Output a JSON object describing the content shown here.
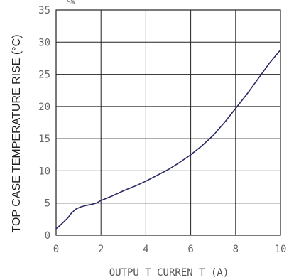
{
  "chart_data": {
    "type": "line",
    "title": "",
    "corner_text": "SW",
    "xlabel": "OUTPU T CURREN T (A)",
    "ylabel": "TOP CASE TEMPERATURE RISE (°C)",
    "xlim": [
      0,
      10
    ],
    "ylim": [
      0,
      35
    ],
    "x_ticks": [
      0,
      2,
      4,
      6,
      8,
      10
    ],
    "y_ticks": [
      0,
      5,
      10,
      15,
      20,
      25,
      30,
      35
    ],
    "grid": true,
    "series": [
      {
        "color": "#2a2a66",
        "x": [
          0,
          0.2,
          0.5,
          0.7,
          0.9,
          1.1,
          1.3,
          1.6,
          1.8,
          2.0,
          2.5,
          3.0,
          3.5,
          4.0,
          4.5,
          5.0,
          5.5,
          6.0,
          6.5,
          7.0,
          7.5,
          8.0,
          8.5,
          9.0,
          9.5,
          10.0
        ],
        "y": [
          1.0,
          1.6,
          2.6,
          3.5,
          4.1,
          4.4,
          4.6,
          4.8,
          5.0,
          5.4,
          6.1,
          6.9,
          7.6,
          8.4,
          9.3,
          10.2,
          11.3,
          12.5,
          13.9,
          15.5,
          17.5,
          19.7,
          21.9,
          24.3,
          26.7,
          28.8
        ]
      }
    ]
  }
}
